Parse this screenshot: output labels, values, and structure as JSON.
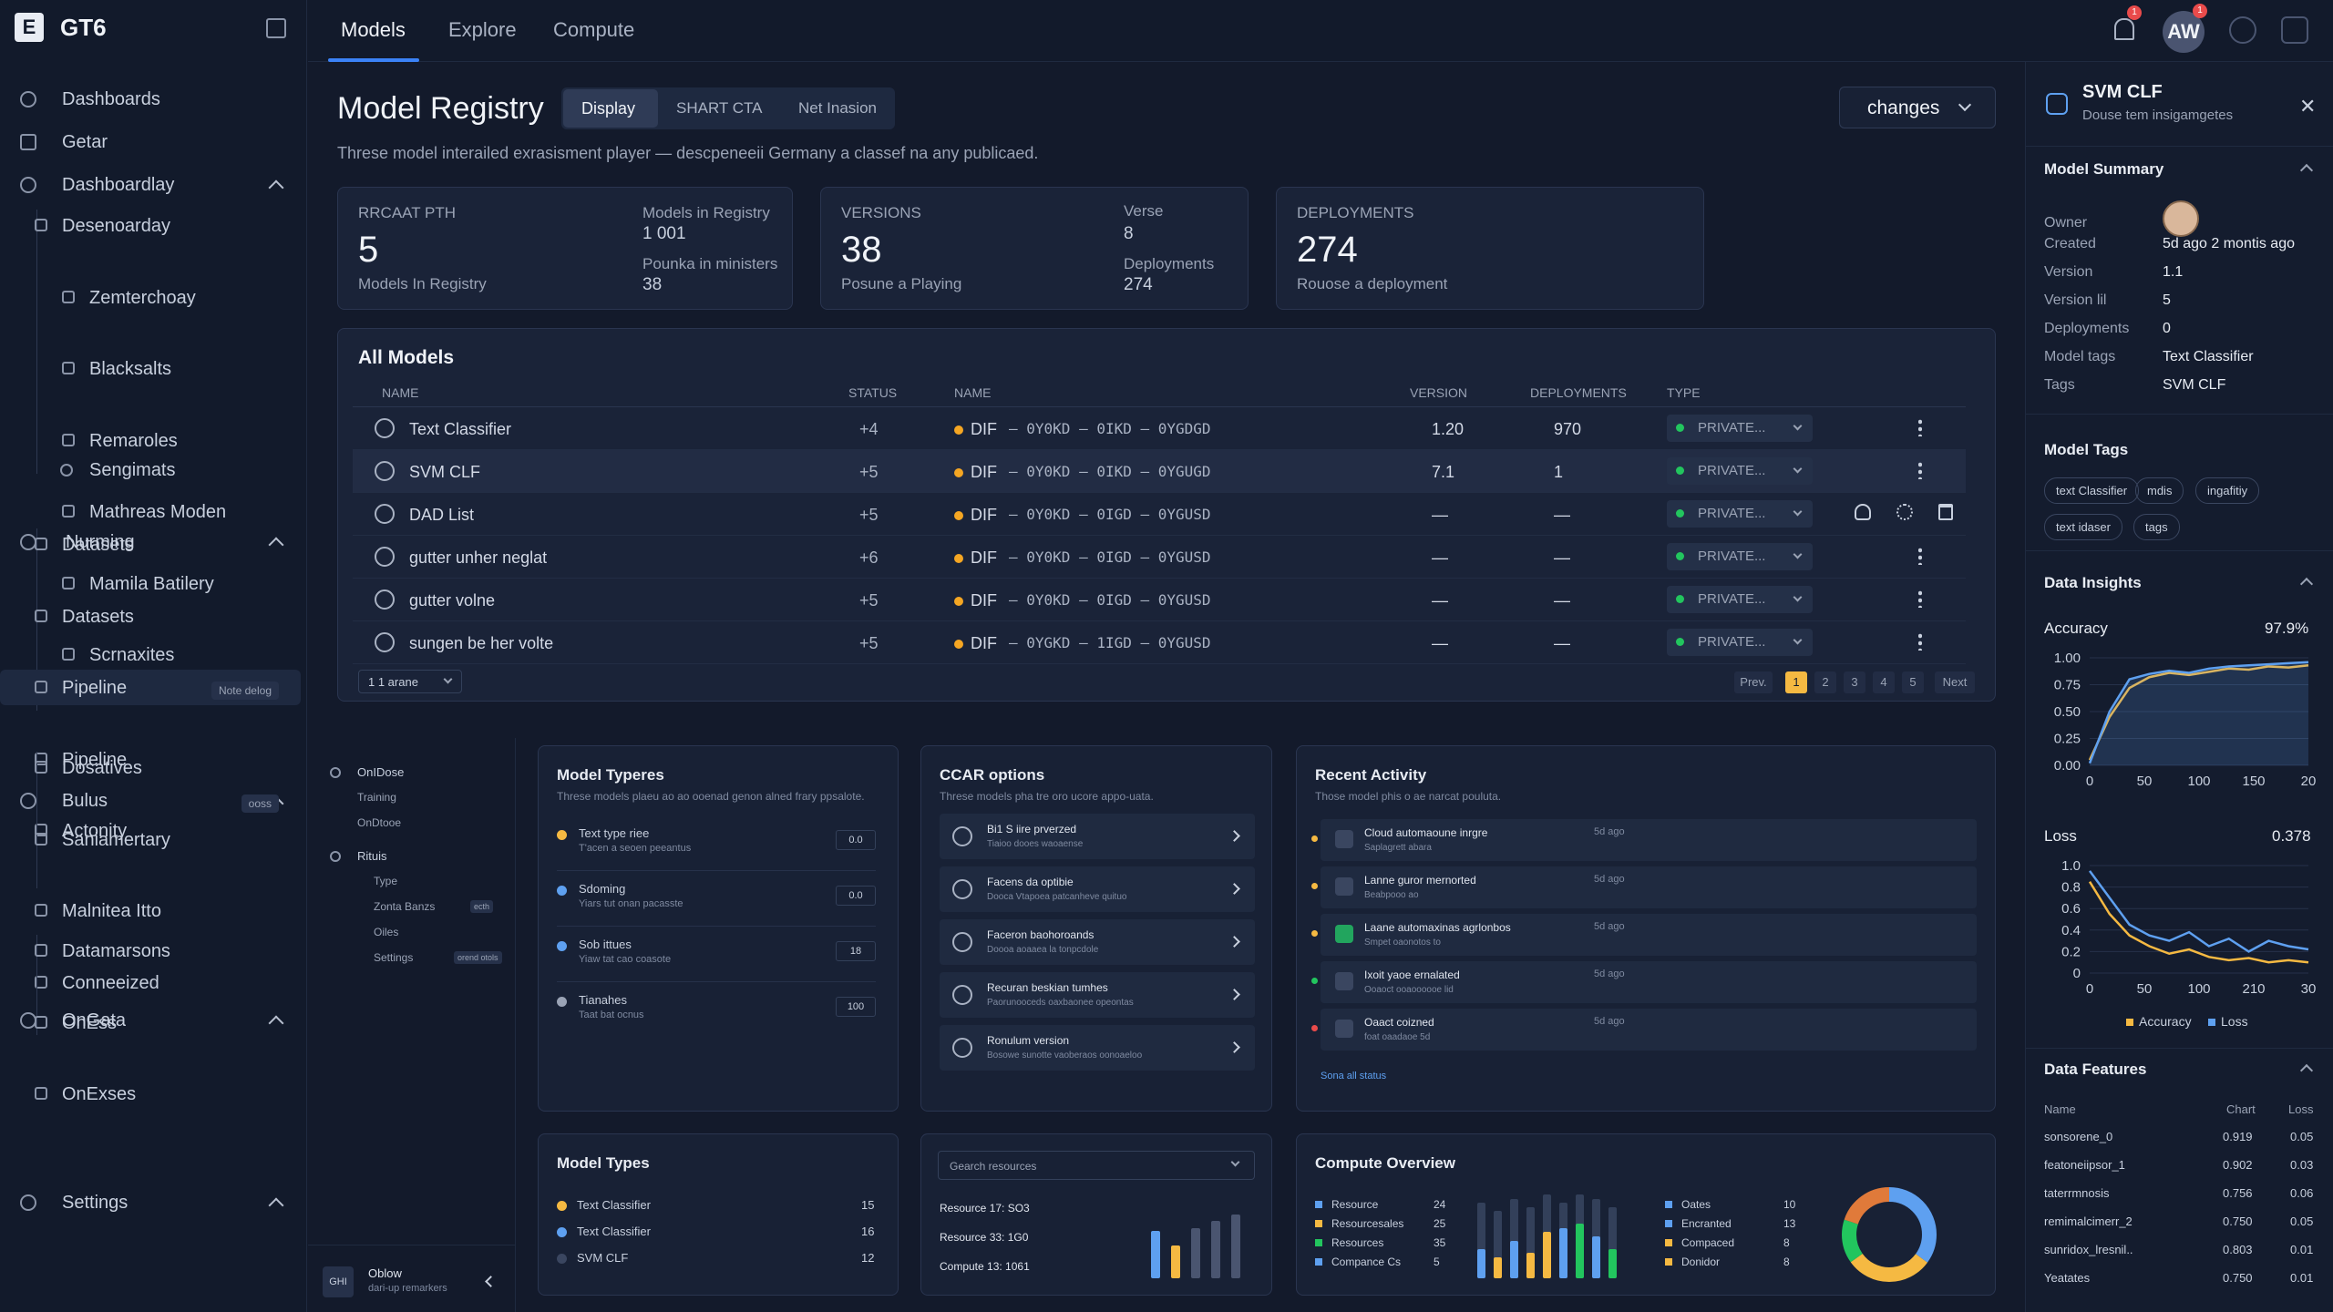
{
  "app": {
    "brand": "GT6",
    "logo": "E"
  },
  "nav": {
    "top": [
      {
        "label": "Dashboards"
      },
      {
        "label": "Getar"
      },
      {
        "label": "Dashboardlay"
      }
    ],
    "group1": [
      "Desenoarday",
      "Zemterchoay",
      "Blacksalts",
      "Remaroles",
      "Mathreas Moden",
      "Mamila Batilery",
      "Scrnaxites"
    ],
    "sengimats": "Sengimats",
    "nurming": "Nurming",
    "group2": [
      "Datasets",
      "Datasets",
      "Pipeline",
      "Pipeline",
      "Actonity"
    ],
    "note_tag": "Note delog",
    "bulus": "Bulus",
    "group3": [
      "Dosatives",
      "Saniamertary",
      "Malnitea Itto",
      "Conneeized"
    ],
    "ooss": "ooss",
    "ongata": "OnGata",
    "group4": [
      "Datamarsons",
      "OnEss",
      "OnExses"
    ],
    "settings": "Settings"
  },
  "topbar": {
    "tabs": [
      "Models",
      "Explore",
      "Compute"
    ],
    "notif_count": "1",
    "avatar": "AW",
    "avatar_badge": "1"
  },
  "header": {
    "title": "Model Registry",
    "subtabs": [
      "Display",
      "SHART CTA",
      "Net Inasion"
    ],
    "changes": "changes",
    "description": "Threse model interailed exrasisment player — descpeneeii Germany a classef na any publicaed."
  },
  "stats": [
    {
      "label": "RRCAAT PTH",
      "value": "5",
      "sub": "Models In Registry",
      "k1": "Models in Registry",
      "v1": "1 001",
      "k2": "Pounka in ministers",
      "v2": "38"
    },
    {
      "label": "VERSIONS",
      "value": "38",
      "sub": "Posune a Playing",
      "k1": "Verse",
      "v1": "8",
      "k2": "Deployments",
      "v2": "274"
    },
    {
      "label": "DEPLOYMENTS",
      "value": "274",
      "sub": "Rouose a deployment"
    }
  ],
  "table": {
    "title": "All Models",
    "headers": [
      "NAME",
      "STATUS",
      "NAME",
      "VERSION",
      "DEPLOYMENTS",
      "TYPE"
    ],
    "rows": [
      {
        "name": "Text Classifier",
        "status": "+4",
        "env": "DIF",
        "path": "— 0Y0KD — 0IKD — 0YGDGD",
        "version": "1.20",
        "deployments": "970",
        "type": "PRIVATE..."
      },
      {
        "name": "SVM CLF",
        "status": "+5",
        "env": "DIF",
        "path": "— 0Y0KD — 0IKD — 0YGUGD",
        "version": "7.1",
        "deployments": "1",
        "type": "PRIVATE..."
      },
      {
        "name": "DAD List",
        "status": "+5",
        "env": "DIF",
        "path": "— 0Y0KD — 0IGD — 0YGUSD",
        "version": "—",
        "deployments": "—",
        "type": "PRIVATE..."
      },
      {
        "name": "gutter unher neglat",
        "status": "+6",
        "env": "DIF",
        "path": "— 0Y0KD — 0IGD — 0YGUSD",
        "version": "—",
        "deployments": "—",
        "type": "PRIVATE..."
      },
      {
        "name": "gutter volne",
        "status": "+5",
        "env": "DIF",
        "path": "— 0Y0KD — 0IGD — 0YGUSD",
        "version": "—",
        "deployments": "—",
        "type": "PRIVATE..."
      },
      {
        "name": "sungen be her volte",
        "status": "+5",
        "env": "DIF",
        "path": "— 0YGKD — 1IGD — 0YGUSD",
        "version": "—",
        "deployments": "—",
        "type": "PRIVATE..."
      }
    ],
    "per_page": "1 1 arane",
    "pager": {
      "prev": "Prev.",
      "pages": [
        "1",
        "2",
        "3",
        "4",
        "5"
      ],
      "next": "Next"
    }
  },
  "filters": {
    "g1": "OnIDose",
    "g1_items": [
      "Training",
      "OnDtooe"
    ],
    "g2": "Rituis",
    "g2_items": [
      "Type",
      "Zonta Banzs",
      "Oiles",
      "Settings"
    ],
    "tag1": "ecth",
    "tag2": "orend otols",
    "footer_logo": "GHI",
    "footer_title": "Oblow",
    "footer_sub": "dari-up remarkers"
  },
  "model_typeres": {
    "title": "Model Typeres",
    "sub": "Threse models plaeu ao ao ooenad genon alned frary ppsalote.",
    "items": [
      {
        "t": "Text type riee",
        "s": "T'acen a seoen peeantus",
        "v": "0.0",
        "c": "#f5b942"
      },
      {
        "t": "Sdoming",
        "s": "Yiars tut onan pacasste",
        "v": "0.0",
        "c": "#5ea0f0"
      },
      {
        "t": "Sob ittues",
        "s": "Yiaw tat cao coasote",
        "v": "18",
        "c": "#5ea0f0"
      },
      {
        "t": "Tianahes",
        "s": "Taat bat ocnus",
        "v": "100",
        "c": "#9aa3b5"
      }
    ]
  },
  "ccar": {
    "title": "CCAR options",
    "sub": "Threse models pha tre oro ucore appo-uata.",
    "items": [
      {
        "t": "Bi1 S iire prverzed",
        "s": "Tiaioo dooes waoaense"
      },
      {
        "t": "Facens da optibie",
        "s": "Dooca Vtapoea patcanheve quituo"
      },
      {
        "t": "Faceron baohoroands",
        "s": "Doooa aoaaea la tonpcdole"
      },
      {
        "t": "Recuran beskian tumhes",
        "s": "Paorunooceds oaxbaonee opeontas"
      },
      {
        "t": "Ronulum version",
        "s": "Bosowe sunotte vaoberaos oonoaeloo"
      }
    ]
  },
  "recent": {
    "title": "Recent Activity",
    "sub": "Those model phis o ae narcat pouluta.",
    "items": [
      {
        "t": "Cloud automaoune inrgre",
        "s": "Saplagrett abara",
        "time": "5d ago",
        "c": "#f5b942"
      },
      {
        "t": "Lanne guror mernorted",
        "s": "Beabpooo ao",
        "time": "5d ago",
        "c": "#f5b942"
      },
      {
        "t": "Laane automaxinas agrlonbos",
        "s": "Smpet oaonotos to",
        "time": "5d ago",
        "c": "#f5b942"
      },
      {
        "t": "Ixoit yaoe ernalated",
        "s": "Ooaoct ooaoooooe lid",
        "time": "5d ago",
        "c": "#22c55e"
      },
      {
        "t": "Oaact coizned",
        "s": "foat oaadaoe 5d",
        "time": "5d ago",
        "c": "#e94b4b"
      }
    ],
    "link": "Sona all status"
  },
  "model_types": {
    "title": "Model Types",
    "items": [
      {
        "t": "Text Classifier",
        "v": "15",
        "c": "#f5b942"
      },
      {
        "t": "Text Classifier",
        "v": "16",
        "c": "#5ea0f0"
      },
      {
        "t": "SVM CLF",
        "v": "12",
        "c": "#3a4660"
      }
    ]
  },
  "resources": {
    "placeholder": "Gearch resources",
    "lines": [
      "Resource 17: SO3",
      "Resource 33: 1G0",
      "Compute 13: 1061"
    ],
    "bars": [
      {
        "h": 0.74,
        "c": "#5ea0f0"
      },
      {
        "h": 0.52,
        "c": "#f5b942"
      },
      {
        "h": 0.78,
        "c": "#4a5570"
      },
      {
        "h": 0.9,
        "c": "#4a5570"
      },
      {
        "h": 1.0,
        "c": "#4a5570"
      }
    ]
  },
  "compute": {
    "title": "Compute Overview",
    "legend1": [
      {
        "t": "Resource",
        "v": "24",
        "c": "#5ea0f0"
      },
      {
        "t": "Resourcesales",
        "v": "25",
        "c": "#f5b942"
      },
      {
        "t": "Resources",
        "v": "35",
        "c": "#22c55e"
      },
      {
        "t": "Compance Cs",
        "v": "5",
        "c": "#5ea0f0"
      }
    ],
    "legend2": [
      {
        "t": "Oates",
        "v": "10",
        "c": "#5ea0f0"
      },
      {
        "t": "Encranted",
        "v": "13",
        "c": "#5ea0f0"
      },
      {
        "t": "Compaced",
        "v": "8",
        "c": "#f5b942"
      },
      {
        "t": "Donidor",
        "v": "8",
        "c": "#f5b942"
      }
    ],
    "bars": [
      [
        0.35,
        0.9,
        "#5ea0f0"
      ],
      [
        0.25,
        0.8,
        "#f5b942"
      ],
      [
        0.45,
        0.95,
        "#5ea0f0"
      ],
      [
        0.3,
        0.85,
        "#f5b942"
      ],
      [
        0.55,
        1.0,
        "#f5b942"
      ],
      [
        0.6,
        0.9,
        "#5ea0f0"
      ],
      [
        0.65,
        1.0,
        "#22c55e"
      ],
      [
        0.5,
        0.95,
        "#5ea0f0"
      ],
      [
        0.35,
        0.85,
        "#22c55e"
      ]
    ],
    "donut": [
      {
        "v": 35,
        "c": "#5ea0f0"
      },
      {
        "v": 30,
        "c": "#f5b942"
      },
      {
        "v": 15,
        "c": "#22c55e"
      },
      {
        "v": 20,
        "c": "#e07a3a"
      }
    ]
  },
  "right": {
    "title": "SVM CLF",
    "subtitle": "Douse tem insigamgetes",
    "summary_title": "Model Summary",
    "summary": [
      {
        "k": "Owner",
        "v": ""
      },
      {
        "k": "Created",
        "v": "5d ago 2 montis ago"
      },
      {
        "k": "Version",
        "v": "1.1"
      },
      {
        "k": "Version lil",
        "v": "5"
      },
      {
        "k": "Deployments",
        "v": "0"
      },
      {
        "k": "Model tags",
        "v": "Text Classifier"
      },
      {
        "k": "Tags",
        "v": "SVM CLF"
      }
    ],
    "tags_title": "Model Tags",
    "tags": [
      "text Classifier",
      "mdis",
      "ingafitiy",
      "text idaser",
      "tags"
    ],
    "insights_title": "Data Insights",
    "accuracy_label": "Accuracy",
    "accuracy_value": "97.9%",
    "loss_label": "Loss",
    "loss_value": "0.378",
    "legend": [
      "Accuracy",
      "Loss"
    ],
    "features_title": "Data Features",
    "feat_headers": [
      "Name",
      "Chart",
      "Loss"
    ],
    "features": [
      {
        "n": "sonsorene_0",
        "c": "0.919",
        "l": "0.05"
      },
      {
        "n": "featoneiipsor_1",
        "c": "0.902",
        "l": "0.03"
      },
      {
        "n": "taterrmnosis",
        "c": "0.756",
        "l": "0.06"
      },
      {
        "n": "remimalcimerr_2",
        "c": "0.750",
        "l": "0.05"
      },
      {
        "n": "sunridox_lresnil..",
        "c": "0.803",
        "l": "0.01"
      },
      {
        "n": "Yeatates",
        "c": "0.750",
        "l": "0.01"
      }
    ]
  },
  "chart_data": [
    {
      "type": "line",
      "title": "Accuracy",
      "ylim": [
        0,
        1.0
      ],
      "yticks": [
        "1.00",
        "0.75",
        "0.50",
        "0.25",
        "0.00"
      ],
      "xticks": [
        "0",
        "50",
        "100",
        "150",
        "20"
      ],
      "series": [
        {
          "name": "Accuracy",
          "color": "#f5b942",
          "values": [
            0.05,
            0.45,
            0.72,
            0.82,
            0.86,
            0.84,
            0.87,
            0.9,
            0.89,
            0.92,
            0.91,
            0.93
          ]
        },
        {
          "name": "Loss",
          "color": "#5ea0f0",
          "values": [
            0.02,
            0.5,
            0.8,
            0.85,
            0.88,
            0.86,
            0.9,
            0.92,
            0.93,
            0.94,
            0.95,
            0.96
          ]
        }
      ]
    },
    {
      "type": "line",
      "title": "Loss",
      "ylim": [
        0,
        1.0
      ],
      "yticks": [
        "1.0",
        "0.8",
        "0.6",
        "0.4",
        "0.2",
        "0"
      ],
      "xticks": [
        "0",
        "50",
        "100",
        "210",
        "30"
      ],
      "series": [
        {
          "name": "Accuracy",
          "color": "#f5b942",
          "values": [
            0.85,
            0.55,
            0.35,
            0.25,
            0.18,
            0.22,
            0.15,
            0.12,
            0.14,
            0.1,
            0.12,
            0.1
          ]
        },
        {
          "name": "Loss",
          "color": "#5ea0f0",
          "values": [
            0.95,
            0.7,
            0.45,
            0.35,
            0.3,
            0.38,
            0.25,
            0.32,
            0.2,
            0.3,
            0.25,
            0.22
          ]
        }
      ]
    }
  ]
}
